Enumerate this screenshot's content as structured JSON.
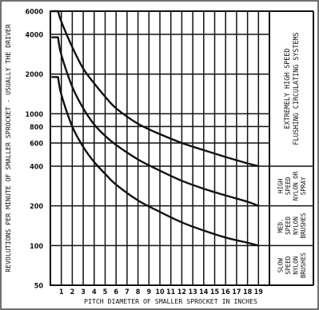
{
  "chart_data": {
    "type": "line",
    "title": "",
    "xlabel": "PITCH DIAMETER OF SMALLER SPROCKET IN INCHES",
    "ylabel": "REVOLUTIONS PER MINUTE OF SMALLER SPROCKET - USUALLY THE DRIVER",
    "x_ticks": [
      "1",
      "2",
      "3",
      "4",
      "5",
      "6",
      "7",
      "8",
      "9",
      "10",
      "11",
      "12",
      "13",
      "14",
      "15",
      "16",
      "17",
      "18",
      "19"
    ],
    "y_ticks": [
      {
        "value": 6000,
        "label": "6000"
      },
      {
        "value": 4000,
        "label": "4000"
      },
      {
        "value": 2000,
        "label": "2000"
      },
      {
        "value": 1000,
        "label": "1000"
      },
      {
        "value": 800,
        "label": "800"
      },
      {
        "value": 600,
        "label": "600"
      },
      {
        "value": 400,
        "label": "400"
      },
      {
        "value": 200,
        "label": "200"
      },
      {
        "value": 100,
        "label": "100"
      },
      {
        "value": 50,
        "label": "50"
      }
    ],
    "xlim": [
      0,
      20
    ],
    "ylim": [
      50,
      6000
    ],
    "y_scale": "log",
    "grid": true,
    "series": [
      {
        "x": [
          0.1,
          0.7,
          1,
          2,
          3,
          4,
          5,
          6,
          8,
          10,
          12,
          14,
          16,
          18,
          19
        ],
        "y": [
          6000,
          6000,
          5000,
          3200,
          2200,
          1700,
          1350,
          1100,
          840,
          700,
          600,
          530,
          470,
          420,
          400
        ]
      },
      {
        "x": [
          0.1,
          0.7,
          1,
          2,
          3,
          4,
          5,
          6,
          8,
          10,
          12,
          14,
          16,
          18,
          19
        ],
        "y": [
          3800,
          3800,
          2800,
          1600,
          1100,
          830,
          680,
          580,
          450,
          370,
          310,
          270,
          240,
          215,
          200
        ]
      },
      {
        "x": [
          0.1,
          0.7,
          1,
          2,
          3,
          4,
          5,
          6,
          8,
          10,
          12,
          14,
          16,
          18,
          19
        ],
        "y": [
          1900,
          1900,
          1400,
          800,
          560,
          430,
          350,
          290,
          220,
          180,
          150,
          130,
          115,
          105,
          100
        ]
      }
    ],
    "zones": [
      {
        "lines": [
          "EXTREMELY HIGH SPEED",
          "FLUSHING CIRCULATING SYSTEMS"
        ],
        "y_range": [
          400,
          6000
        ]
      },
      {
        "lines": [
          "HIGH",
          "SPEED",
          "NYLON OR",
          "SPRAY"
        ],
        "y_range": [
          200,
          400
        ]
      },
      {
        "lines": [
          "MED.",
          "SPEED",
          "NYLON",
          "BRUSHES"
        ],
        "y_range": [
          100,
          200
        ]
      },
      {
        "lines": [
          "SLOW",
          "SPEED",
          "NYLON",
          "BRUSHES"
        ],
        "y_range": [
          50,
          100
        ]
      }
    ]
  }
}
